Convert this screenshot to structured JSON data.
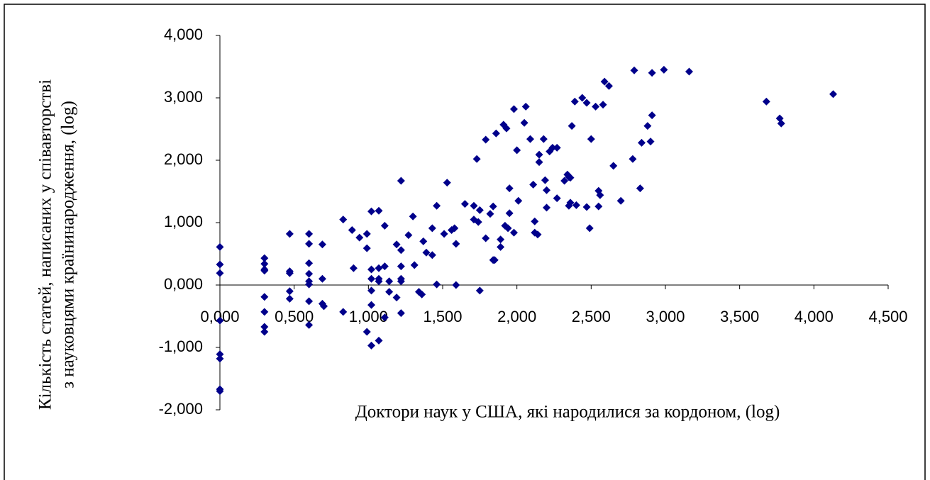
{
  "chart_data": {
    "type": "scatter",
    "xlabel": "Доктори наук у США, які народилися за кордоном, (log)",
    "ylabel": [
      "Кількість статей, написаних у співавторстві",
      "з науковцями країнинародження, (log)"
    ],
    "color": "#00008b",
    "xlim": [
      0,
      4.5
    ],
    "ylim": [
      -2,
      4
    ],
    "xticks": [
      {
        "value": 0,
        "label": "0,000"
      },
      {
        "value": 0.5,
        "label": "0,500"
      },
      {
        "value": 1,
        "label": "1,000"
      },
      {
        "value": 1.5,
        "label": "1,500"
      },
      {
        "value": 2,
        "label": "2,000"
      },
      {
        "value": 2.5,
        "label": "2,500"
      },
      {
        "value": 3,
        "label": "3,000"
      },
      {
        "value": 3.5,
        "label": "3,500"
      },
      {
        "value": 4,
        "label": "4,000"
      },
      {
        "value": 4.5,
        "label": "4,500"
      }
    ],
    "yticks": [
      {
        "value": -2,
        "label": "-2,000"
      },
      {
        "value": -1,
        "label": "-1,000"
      },
      {
        "value": 0,
        "label": "0,000"
      },
      {
        "value": 1,
        "label": "1,000"
      },
      {
        "value": 2,
        "label": "2,000"
      },
      {
        "value": 3,
        "label": "3,000"
      },
      {
        "value": 4,
        "label": "4,000"
      }
    ],
    "x": [
      0,
      0,
      0,
      0,
      0,
      0,
      0,
      0,
      0.3,
      0.3,
      0.3,
      0.3,
      0.3,
      0.3,
      0.3,
      0.3,
      0.47,
      0.47,
      0.47,
      0.47,
      0.47,
      0.6,
      0.6,
      0.6,
      0.6,
      0.6,
      0.6,
      0.6,
      0.6,
      0.69,
      0.69,
      0.69,
      0.7,
      0.83,
      0.83,
      0.89,
      0.9,
      0.94,
      0.99,
      0.99,
      0.99,
      1.02,
      1.02,
      1.02,
      1.02,
      1.02,
      1.02,
      1.07,
      1.07,
      1.07,
      1.07,
      1.07,
      1.11,
      1.11,
      1.11,
      1.14,
      1.14,
      1.19,
      1.19,
      1.22,
      1.22,
      1.22,
      1.22,
      1.22,
      1.22,
      1.27,
      1.3,
      1.31,
      1.34,
      1.36,
      1.37,
      1.39,
      1.43,
      1.43,
      1.46,
      1.46,
      1.51,
      1.53,
      1.56,
      1.58,
      1.59,
      1.59,
      1.65,
      1.71,
      1.71,
      1.73,
      1.74,
      1.75,
      1.75,
      1.79,
      1.79,
      1.82,
      1.84,
      1.84,
      1.85,
      1.86,
      1.89,
      1.89,
      1.91,
      1.93,
      1.92,
      1.94,
      1.95,
      1.95,
      1.98,
      1.98,
      2.0,
      2.01,
      2.06,
      2.05,
      2.09,
      2.11,
      2.12,
      2.12,
      2.14,
      2.15,
      2.15,
      2.18,
      2.19,
      2.2,
      2.2,
      2.22,
      2.24,
      2.27,
      2.27,
      2.32,
      2.34,
      2.35,
      2.36,
      2.35,
      2.37,
      2.36,
      2.39,
      2.4,
      2.44,
      2.47,
      2.47,
      2.49,
      2.5,
      2.53,
      2.55,
      2.55,
      2.56,
      2.58,
      2.59,
      2.62,
      2.65,
      2.7,
      2.78,
      2.79,
      2.84,
      2.83,
      2.88,
      2.9,
      2.91,
      2.91,
      2.99,
      3.16,
      3.68,
      3.77,
      3.78,
      4.13
    ],
    "y": [
      0.61,
      0.33,
      0.19,
      -0.57,
      -1.11,
      -1.18,
      -1.67,
      -1.7,
      0.43,
      0.34,
      0.25,
      0.23,
      -0.19,
      -0.43,
      -0.67,
      -0.75,
      0.82,
      0.22,
      0.19,
      -0.1,
      -0.22,
      0.82,
      0.66,
      0.35,
      0.18,
      0.06,
      0.01,
      -0.26,
      -0.64,
      0.65,
      0.1,
      -0.3,
      -0.34,
      1.05,
      -0.43,
      0.88,
      0.27,
      0.76,
      0.59,
      0.82,
      -0.75,
      1.18,
      0.25,
      0.1,
      -0.09,
      -0.32,
      -0.97,
      1.19,
      0.27,
      0.1,
      0.06,
      -0.89,
      0.95,
      0.3,
      -0.52,
      0.06,
      -0.11,
      -0.2,
      0.65,
      1.67,
      0.56,
      0.3,
      0.1,
      0.06,
      -0.45,
      0.8,
      1.1,
      0.32,
      -0.11,
      -0.15,
      0.7,
      0.52,
      0.91,
      0.48,
      1.27,
      0.01,
      0.82,
      1.64,
      0.88,
      0.91,
      0.66,
      0.0,
      1.3,
      1.27,
      1.05,
      2.02,
      1.01,
      -0.09,
      1.2,
      0.75,
      2.33,
      1.14,
      1.26,
      0.4,
      0.4,
      2.43,
      0.73,
      0.61,
      2.57,
      2.51,
      0.95,
      0.91,
      1.55,
      1.15,
      0.84,
      2.82,
      2.16,
      1.35,
      2.86,
      2.6,
      2.34,
      1.61,
      1.02,
      0.84,
      0.81,
      1.97,
      2.09,
      2.34,
      1.68,
      1.52,
      1.24,
      2.14,
      2.2,
      1.39,
      2.2,
      1.67,
      1.77,
      1.73,
      1.72,
      1.27,
      2.55,
      1.32,
      2.94,
      1.28,
      3.0,
      1.25,
      2.92,
      0.91,
      2.34,
      2.86,
      1.26,
      1.51,
      1.44,
      2.89,
      3.26,
      3.19,
      1.91,
      1.35,
      2.02,
      3.44,
      2.28,
      1.55,
      2.55,
      2.3,
      2.72,
      3.4,
      3.45,
      3.42,
      2.94,
      2.67,
      2.59,
      3.06
    ]
  }
}
